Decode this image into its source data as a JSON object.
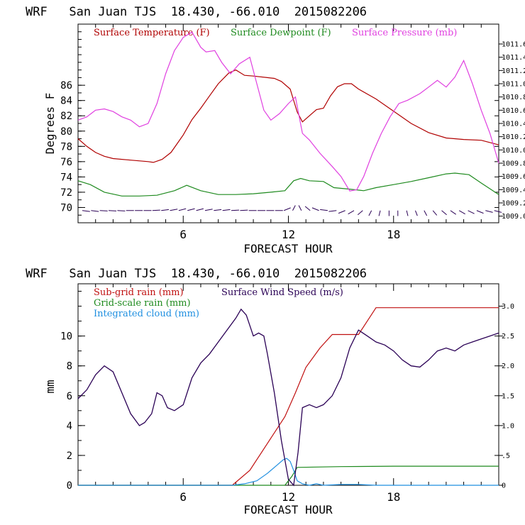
{
  "colors": {
    "temperature": "#b00000",
    "dewpoint": "#1e8a1e",
    "pressure": "#e040e0",
    "subgrid": "#c01010",
    "gridscale": "#1e8a1e",
    "cloud": "#1f8fe0",
    "wind": "#2a0055",
    "axis": "#000000"
  },
  "chart_data": [
    {
      "type": "line",
      "title": "WRF   San Juan TJS  18.430, -66.010  2015082206",
      "xlabel": "FORECAST HOUR",
      "ylabel": "Degrees F",
      "xlim": [
        0,
        24
      ],
      "ylim": [
        68,
        94
      ],
      "ylim_right": [
        1008.9,
        1011.9
      ],
      "xticks": [
        "6",
        "12",
        "18"
      ],
      "yticks": [
        "70",
        "72",
        "74",
        "76",
        "78",
        "80",
        "82",
        "84",
        "86"
      ],
      "yticks_right": [
        "1009.0",
        "1009.2",
        "1009.4",
        "1009.6",
        "1009.8",
        "1010.0",
        "1010.2",
        "1010.4",
        "1010.6",
        "1010.8",
        "1011.0",
        "1011.2",
        "1011.4",
        "1011.6"
      ],
      "legend": [
        "Surface Temperature (F)",
        "Surface Dewpoint (F)",
        "Surface Pressure (mb)"
      ],
      "series": [
        {
          "name": "Surface Temperature (F)",
          "axis": "left",
          "x": [
            0,
            0.5,
            1,
            1.5,
            2,
            3,
            4,
            4.3,
            4.8,
            5.3,
            6,
            6.5,
            7,
            7.5,
            8,
            8.6,
            9,
            9.5,
            10,
            10.8,
            11.2,
            11.6,
            12.1,
            12.5,
            12.8,
            13.2,
            13.6,
            14,
            14.4,
            14.8,
            15.2,
            15.6,
            16,
            17,
            18,
            19,
            20,
            21,
            22,
            23,
            24
          ],
          "y": [
            79,
            78,
            77.2,
            76.7,
            76.4,
            76.2,
            76.0,
            75.9,
            76.3,
            77.2,
            79.5,
            81.5,
            83.0,
            84.6,
            86.2,
            87.6,
            88.0,
            87.3,
            87.2,
            87.0,
            86.9,
            86.5,
            85.5,
            82.5,
            81.2,
            82.0,
            82.8,
            83.0,
            84.6,
            85.8,
            86.2,
            86.2,
            85.5,
            84.2,
            82.6,
            81.0,
            79.8,
            79.1,
            78.9,
            78.8,
            78.2
          ]
        },
        {
          "name": "Surface Dewpoint (F)",
          "axis": "left",
          "x": [
            0,
            0.7,
            1.5,
            2.5,
            3.5,
            4.5,
            5.5,
            6.2,
            7,
            8,
            9,
            10,
            11,
            11.8,
            12.3,
            12.7,
            13.2,
            14,
            14.6,
            15.5,
            16.3,
            17,
            18,
            19,
            20,
            21,
            21.5,
            22.3,
            23,
            24
          ],
          "y": [
            73.5,
            73.0,
            72.0,
            71.5,
            71.5,
            71.6,
            72.2,
            72.9,
            72.2,
            71.7,
            71.7,
            71.8,
            72.0,
            72.2,
            73.5,
            73.8,
            73.5,
            73.4,
            72.6,
            72.4,
            72.2,
            72.6,
            73.0,
            73.4,
            73.9,
            74.4,
            74.5,
            74.3,
            73.2,
            71.7
          ]
        },
        {
          "name": "Surface Pressure (mb)",
          "axis": "right",
          "x": [
            0,
            0.5,
            1,
            1.5,
            2,
            2.5,
            3,
            3.5,
            4,
            4.5,
            5,
            5.5,
            6,
            6.5,
            7,
            7.3,
            7.8,
            8.2,
            8.7,
            9.2,
            9.8,
            10.2,
            10.6,
            11.0,
            11.5,
            12.0,
            12.4,
            12.8,
            13.2,
            13.8,
            14.5,
            15.0,
            15.5,
            15.9,
            16.3,
            16.8,
            17.3,
            17.8,
            18.3,
            18.8,
            19.5,
            20,
            20.5,
            21,
            21.5,
            22,
            22.5,
            23,
            23.5,
            24
          ],
          "y": [
            1010.45,
            1010.5,
            1010.6,
            1010.62,
            1010.58,
            1010.5,
            1010.45,
            1010.35,
            1010.4,
            1010.7,
            1011.15,
            1011.5,
            1011.7,
            1011.78,
            1011.55,
            1011.48,
            1011.5,
            1011.32,
            1011.15,
            1011.3,
            1011.4,
            1011.0,
            1010.6,
            1010.45,
            1010.55,
            1010.7,
            1010.8,
            1010.25,
            1010.15,
            1009.95,
            1009.75,
            1009.6,
            1009.38,
            1009.4,
            1009.6,
            1009.95,
            1010.25,
            1010.5,
            1010.7,
            1010.75,
            1010.85,
            1010.95,
            1011.05,
            1010.95,
            1011.1,
            1011.35,
            1011.0,
            1010.6,
            1010.25,
            1009.8
          ]
        }
      ],
      "wind_barbs": {
        "hours": [
          0,
          0.5,
          1,
          1.5,
          2,
          2.5,
          3,
          3.5,
          4,
          4.5,
          5,
          5.5,
          6,
          6.5,
          7,
          7.5,
          8,
          8.5,
          9,
          9.5,
          10,
          10.5,
          11,
          11.5,
          12,
          12.5,
          13,
          13.5,
          14,
          14.5,
          15,
          15.5,
          16,
          16.5,
          17,
          17.5,
          18,
          18.5,
          19,
          19.5,
          20,
          20.5,
          21,
          21.5,
          22,
          22.5,
          23,
          23.5
        ],
        "direction_deg": [
          100,
          100,
          95,
          95,
          95,
          90,
          90,
          90,
          85,
          80,
          75,
          70,
          70,
          70,
          75,
          80,
          80,
          85,
          85,
          90,
          90,
          90,
          90,
          60,
          20,
          340,
          320,
          300,
          280,
          260,
          240,
          230,
          220,
          200,
          190,
          180,
          180,
          170,
          165,
          160,
          150,
          140,
          135,
          130,
          125,
          120,
          110,
          110
        ]
      }
    },
    {
      "type": "line",
      "title": "WRF   San Juan TJS  18.430, -66.010  2015082206",
      "xlabel": "FORECAST HOUR",
      "ylabel": "mm",
      "xlim": [
        0,
        24
      ],
      "ylim": [
        0,
        13.5
      ],
      "ylim_right": [
        0,
        3.375
      ],
      "xticks": [
        "6",
        "12",
        "18"
      ],
      "yticks": [
        "0",
        "2",
        "4",
        "6",
        "8",
        "10"
      ],
      "yticks_right": [
        "0",
        ".5",
        "1.0",
        "1.5",
        "2.0",
        "2.5",
        "3.0"
      ],
      "legend": [
        "Sub-grid rain (mm)",
        "Grid-scale rain (mm)",
        "Integrated cloud (mm)",
        "Surface Wind Speed (m/s)"
      ],
      "series": [
        {
          "name": "Sub-grid rain (mm)",
          "axis": "left",
          "x": [
            0,
            8.8,
            9.8,
            10.8,
            11.8,
            12.4,
            13,
            13.8,
            14.5,
            15.5,
            16,
            16.5,
            17,
            20,
            24
          ],
          "y": [
            0,
            0,
            1.0,
            2.8,
            4.6,
            6.2,
            7.9,
            9.2,
            10.1,
            10.1,
            10.1,
            11.0,
            11.9,
            11.9,
            11.9
          ]
        },
        {
          "name": "Grid-scale rain (mm)",
          "axis": "left",
          "x": [
            0,
            11.8,
            12.2,
            12.5,
            15,
            18,
            21,
            24
          ],
          "y": [
            0,
            0,
            0.6,
            1.2,
            1.25,
            1.28,
            1.28,
            1.28
          ]
        },
        {
          "name": "Integrated cloud (mm)",
          "axis": "left",
          "x": [
            0,
            8.8,
            9.5,
            10.2,
            10.8,
            11.3,
            11.7,
            11.9,
            12.1,
            12.3,
            12.5,
            12.8,
            13.2,
            13.6,
            14,
            15,
            16,
            17,
            24
          ],
          "y": [
            0,
            0,
            0.1,
            0.3,
            0.8,
            1.3,
            1.7,
            1.8,
            1.6,
            1.0,
            0.3,
            0.1,
            0.0,
            0.1,
            0.0,
            0.05,
            0.05,
            0.0,
            0.0
          ]
        },
        {
          "name": "Surface Wind Speed (m/s)",
          "axis": "right",
          "x": [
            0,
            0.5,
            1,
            1.5,
            2,
            2.5,
            3,
            3.5,
            3.8,
            4.2,
            4.5,
            4.8,
            5.1,
            5.5,
            6,
            6.5,
            7,
            7.5,
            8,
            8.5,
            9,
            9.3,
            9.6,
            10,
            10.3,
            10.6,
            10.8,
            11.2,
            11.6,
            12.0,
            12.3,
            12.55,
            12.8,
            13.2,
            13.6,
            14,
            14.5,
            15,
            15.5,
            16,
            16.5,
            17,
            17.5,
            18,
            18.5,
            19,
            19.5,
            20,
            20.5,
            21,
            21.5,
            22,
            22.5,
            23,
            23.5,
            24
          ],
          "y": [
            1.45,
            1.6,
            1.85,
            2.0,
            1.9,
            1.55,
            1.2,
            1.0,
            1.05,
            1.2,
            1.55,
            1.5,
            1.3,
            1.25,
            1.35,
            1.8,
            2.05,
            2.2,
            2.4,
            2.6,
            2.8,
            2.95,
            2.85,
            2.5,
            2.55,
            2.5,
            2.2,
            1.55,
            0.75,
            0.1,
            0.0,
            0.55,
            1.3,
            1.35,
            1.3,
            1.35,
            1.5,
            1.8,
            2.3,
            2.6,
            2.5,
            2.4,
            2.35,
            2.25,
            2.1,
            2.0,
            1.98,
            2.1,
            2.25,
            2.3,
            2.25,
            2.35,
            2.4,
            2.45,
            2.5,
            2.55
          ]
        }
      ]
    }
  ]
}
